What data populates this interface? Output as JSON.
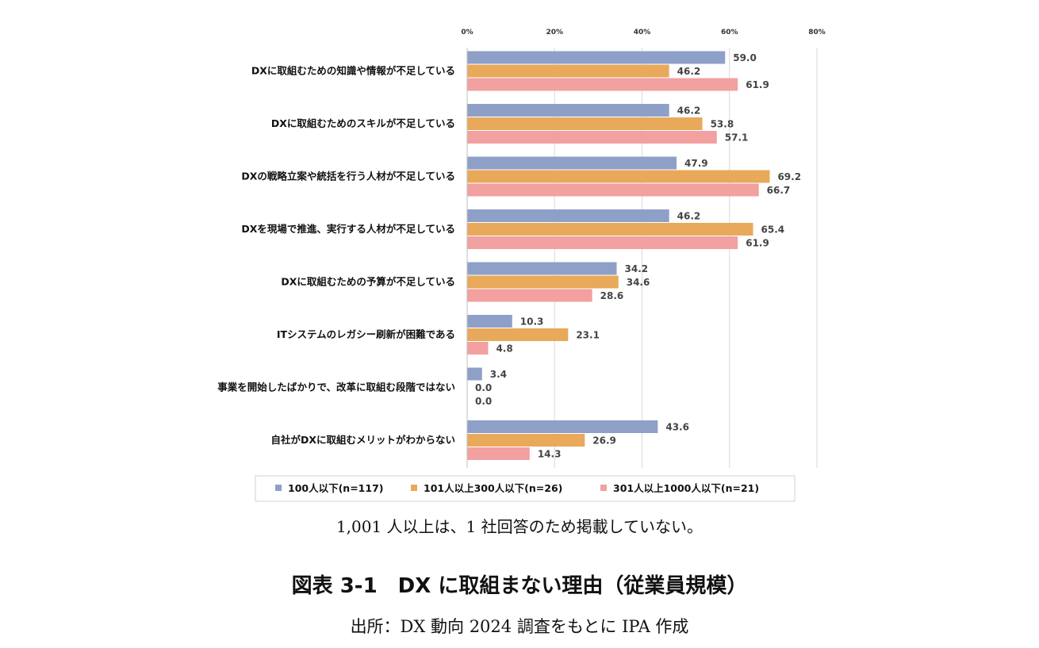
{
  "chart_data": {
    "type": "bar",
    "orientation": "horizontal",
    "categories": [
      "DXに取組むための知識や情報が不足している",
      "DXに取組むためのスキルが不足している",
      "DXの戦略立案や統括を行う人材が不足している",
      "DXを現場で推進、実行する人材が不足している",
      "DXに取組むための予算が不足している",
      "ITシステムのレガシー刷新が困難である",
      "事業を開始したばかりで、改革に取組む段階ではない",
      "自社がDXに取組むメリットがわからない"
    ],
    "series": [
      {
        "name": "100人以下(n=117)",
        "color": "#8ea0c8",
        "values": [
          59.0,
          46.2,
          47.9,
          46.2,
          34.2,
          10.3,
          3.4,
          43.6
        ]
      },
      {
        "name": "101人以上300人以下(n=26)",
        "color": "#e8a95a",
        "values": [
          46.2,
          53.8,
          69.2,
          65.4,
          34.6,
          23.1,
          0.0,
          26.9
        ]
      },
      {
        "name": "301人以上1000人以下(n=21)",
        "color": "#f2a0a0",
        "values": [
          61.9,
          57.1,
          66.7,
          61.9,
          28.6,
          4.8,
          0.0,
          14.3
        ]
      }
    ],
    "xlim": [
      0,
      80
    ],
    "ticks": [
      "0%",
      "20%",
      "40%",
      "60%",
      "80%"
    ],
    "grid": true,
    "legend_position": "bottom"
  },
  "note": "1,001 人以上は、1 社回答のため掲載していない。",
  "figure_title": "図表 3-1　DX に取組まない理由（従業員規模）",
  "source": "出所：DX 動向 2024 調査をもとに IPA 作成"
}
